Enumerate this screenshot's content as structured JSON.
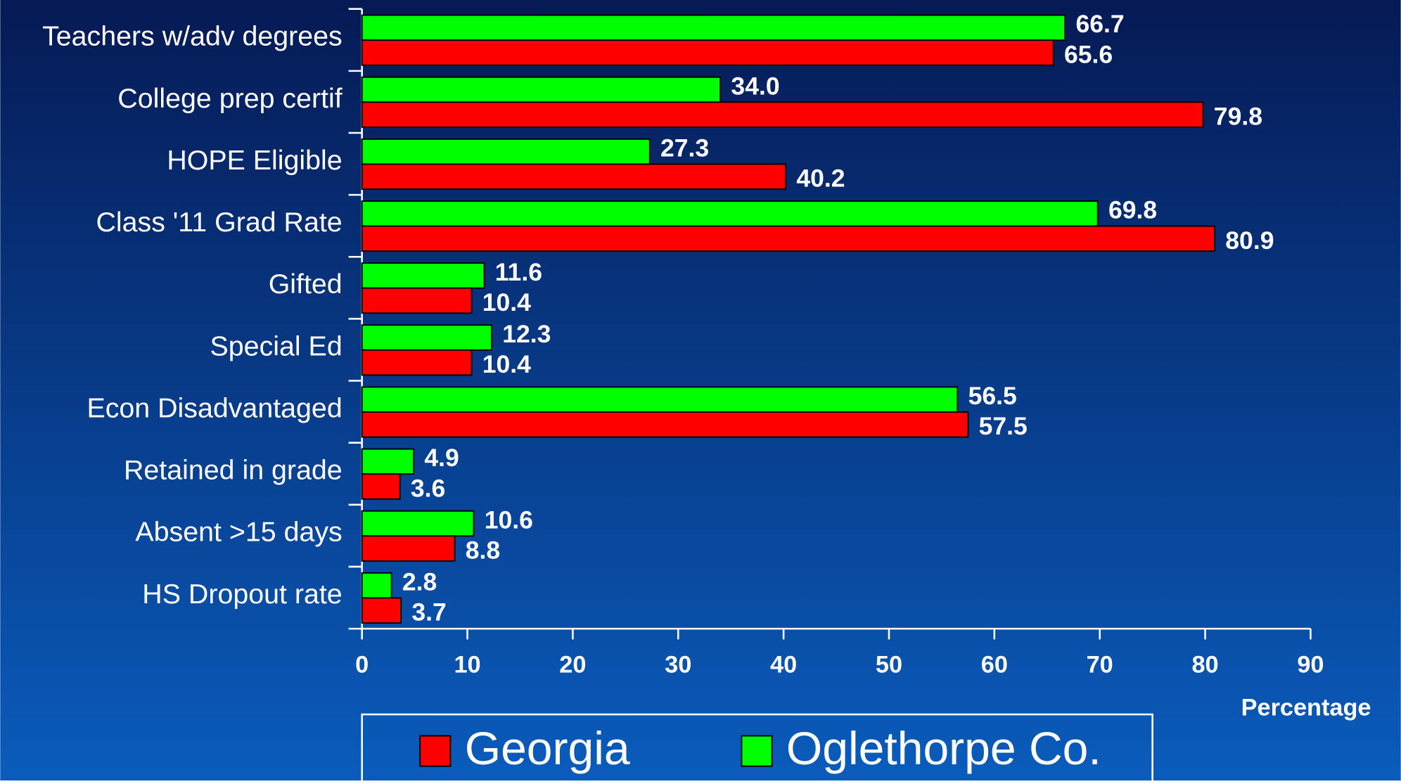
{
  "chart_data": {
    "type": "bar",
    "orientation": "horizontal",
    "categories": [
      "Teachers w/adv degrees",
      "College prep certif",
      "HOPE Eligible",
      "Class '11 Grad Rate",
      "Gifted",
      "Special Ed",
      "Econ Disadvantaged",
      "Retained in grade",
      "Absent >15 days",
      "HS Dropout rate"
    ],
    "series": [
      {
        "name": "Georgia",
        "color": "#ff0000",
        "values": [
          65.6,
          79.8,
          40.2,
          80.9,
          10.4,
          10.4,
          57.5,
          3.6,
          8.8,
          3.7
        ],
        "value_labels": [
          "65.6",
          "79.8",
          "40.2",
          "80.9",
          "10.4",
          "10.4",
          "57.5",
          "3.6",
          "8.8",
          "3.7"
        ]
      },
      {
        "name": "Oglethorpe Co.",
        "color": "#00ff00",
        "values": [
          66.7,
          34,
          27.3,
          69.8,
          11.6,
          12.3,
          56.5,
          4.9,
          10.6,
          2.8
        ],
        "value_labels": [
          "66.7",
          "34.0",
          "27.3",
          "69.8",
          "11.6",
          "12.3",
          "56.5",
          "4.9",
          "10.6",
          "2.8"
        ]
      }
    ],
    "x_label": "Percentage",
    "xlim": [
      0,
      90
    ],
    "xticks": [
      0,
      10,
      20,
      30,
      40,
      50,
      60,
      70,
      80,
      90
    ],
    "legend": "bottom"
  }
}
